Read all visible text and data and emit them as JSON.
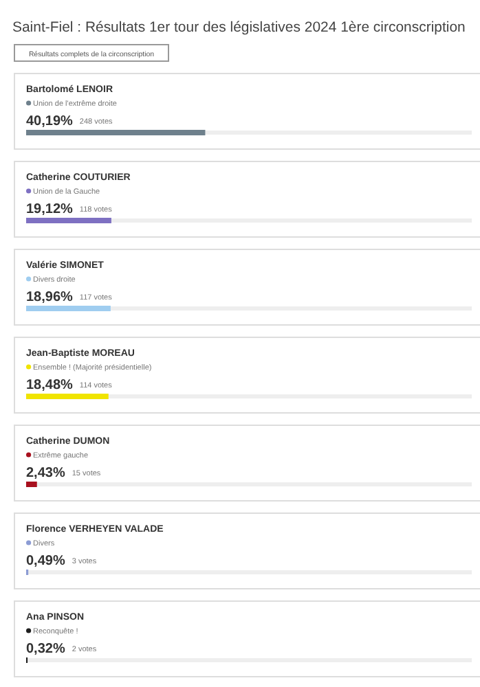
{
  "chart_data": {
    "type": "bar",
    "orientation": "horizontal",
    "title": "Saint-Fiel : Résultats 1er tour des législatives 2024 1ère circonscription",
    "categories": [
      "Bartolomé LENOIR",
      "Catherine COUTURIER",
      "Valérie SIMONET",
      "Jean-Baptiste MOREAU",
      "Catherine DUMON",
      "Florence VERHEYEN VALADE",
      "Ana PINSON"
    ],
    "values": [
      40.19,
      19.12,
      18.96,
      18.48,
      2.43,
      0.49,
      0.32
    ],
    "colors": [
      "#6e808c",
      "#7e70c2",
      "#9fcdf0",
      "#f0e400",
      "#a8101e",
      "#8c9cd4",
      "#1e1e1e"
    ],
    "value_labels": [
      "40,19%",
      "19,12%",
      "18,96%",
      "18,48%",
      "2,43%",
      "0,49%",
      "0,32%"
    ],
    "annotations": [
      "Résultats complets de la circonscription",
      "Union de l'extrême droite",
      "248 votes",
      "Union de la Gauche",
      "118 votes",
      "Divers droite",
      "117 votes",
      "Ensemble ! (Majorité présidentielle)",
      "114 votes",
      "Extrême gauche",
      "15 votes",
      "Divers",
      "3 votes",
      "Reconquête !",
      "2 votes"
    ],
    "xlim": [
      0,
      100
    ]
  }
}
